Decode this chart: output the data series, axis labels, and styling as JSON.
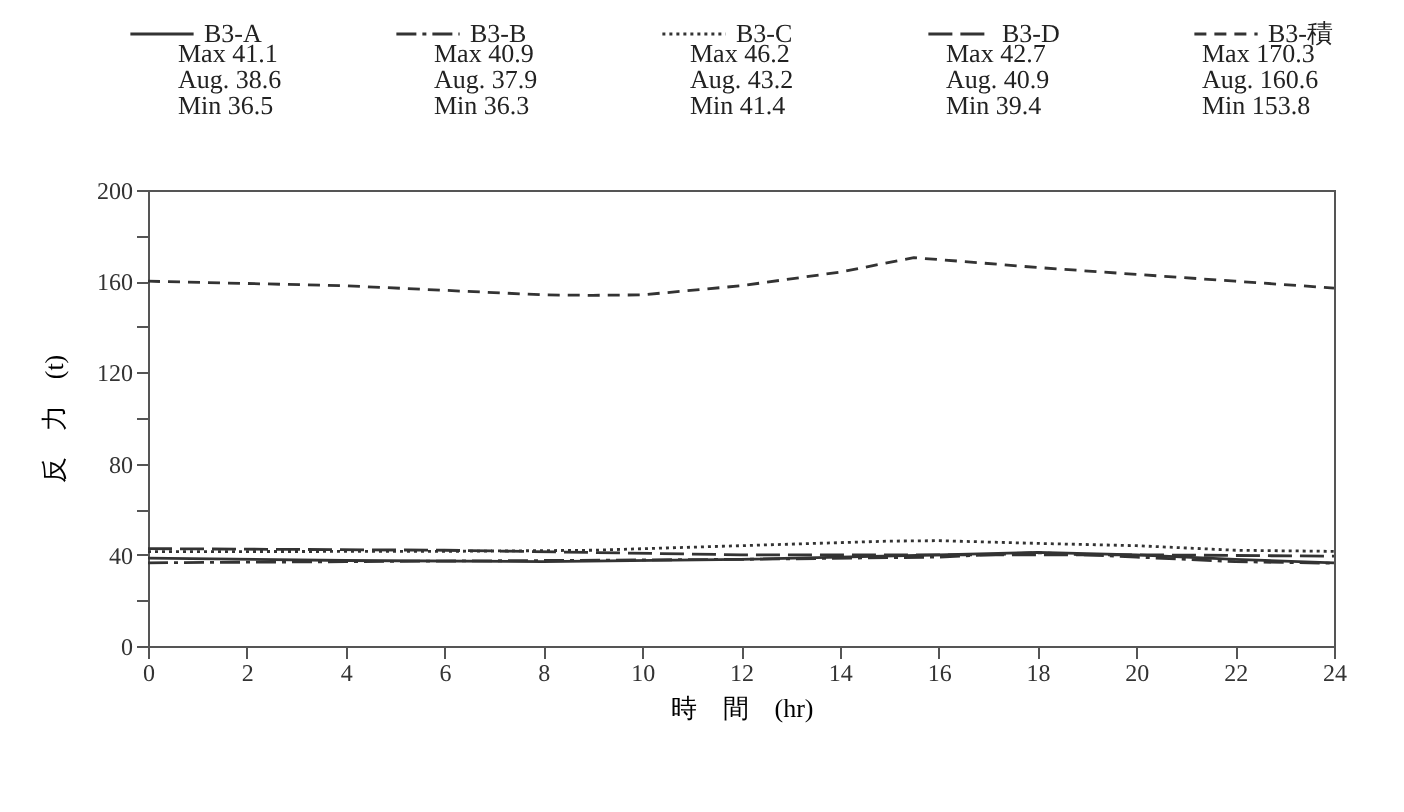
{
  "chart_data": {
    "type": "line",
    "xlabel": "時　間　(hr)",
    "ylabel": "反　力　(t)",
    "xlim": [
      0,
      24
    ],
    "xticks": [
      0,
      2,
      4,
      6,
      8,
      10,
      12,
      14,
      16,
      18,
      20,
      22,
      24
    ],
    "ylim": [
      0,
      200
    ],
    "yticks": [
      0,
      {
        "value": 20,
        "label": null
      },
      40,
      {
        "value": 60,
        "label": null
      },
      80,
      {
        "value": 100,
        "label": null
      },
      120,
      {
        "value": 140,
        "label": null
      },
      160,
      {
        "value": 180,
        "label": null
      },
      200
    ],
    "grid": false,
    "legend": "top",
    "marker": "none",
    "annotations": [
      "Max  41.1\nAug.  38.6\nMin   36.5",
      "Max  40.9\nAug.  37.9\nMin   36.3",
      "Max  46.2\nAug.  43.2\nMin   41.4",
      "Max  42.7\nAug.  40.9\nMin   39.4",
      "Max  170.3\nAug.  160.6\nMin   153.8"
    ],
    "series": [
      {
        "name": "B3-A",
        "color": "#333333",
        "line_style": "solid",
        "x": [
          0,
          4,
          8,
          12,
          16,
          18,
          20,
          22,
          24
        ],
        "values": [
          38.5,
          37.5,
          37,
          38,
          40,
          41.1,
          40,
          38,
          36.5
        ]
      },
      {
        "name": "B3-B",
        "color": "#333333",
        "line_style": "dashdot",
        "x": [
          0,
          4,
          8,
          12,
          16,
          18,
          20,
          22,
          24
        ],
        "values": [
          36.5,
          37,
          37.5,
          38,
          39,
          40.9,
          39,
          37,
          36.3
        ]
      },
      {
        "name": "B3-C",
        "color": "#333333",
        "line_style": "dotted",
        "x": [
          0,
          6,
          9,
          12,
          15,
          16,
          18,
          20,
          22,
          24
        ],
        "values": [
          41.4,
          41.5,
          42,
          44,
          46,
          46.2,
          45,
          44,
          42,
          41.5
        ]
      },
      {
        "name": "B3-D",
        "color": "#333333",
        "line_style": "longdash",
        "x": [
          0,
          6,
          9,
          12,
          16,
          20,
          24
        ],
        "values": [
          42.7,
          42,
          41,
          40,
          40,
          40,
          39.4
        ]
      },
      {
        "name": "B3-積",
        "color": "#333333",
        "line_style": "dashed",
        "x": [
          0,
          2,
          4,
          6,
          8,
          9,
          10,
          12,
          14,
          15.5,
          16,
          18,
          20,
          22,
          24
        ],
        "values": [
          160,
          159,
          158,
          156,
          154,
          153.8,
          154,
          158,
          164,
          170.3,
          169.5,
          166,
          163,
          160,
          157
        ]
      }
    ]
  }
}
